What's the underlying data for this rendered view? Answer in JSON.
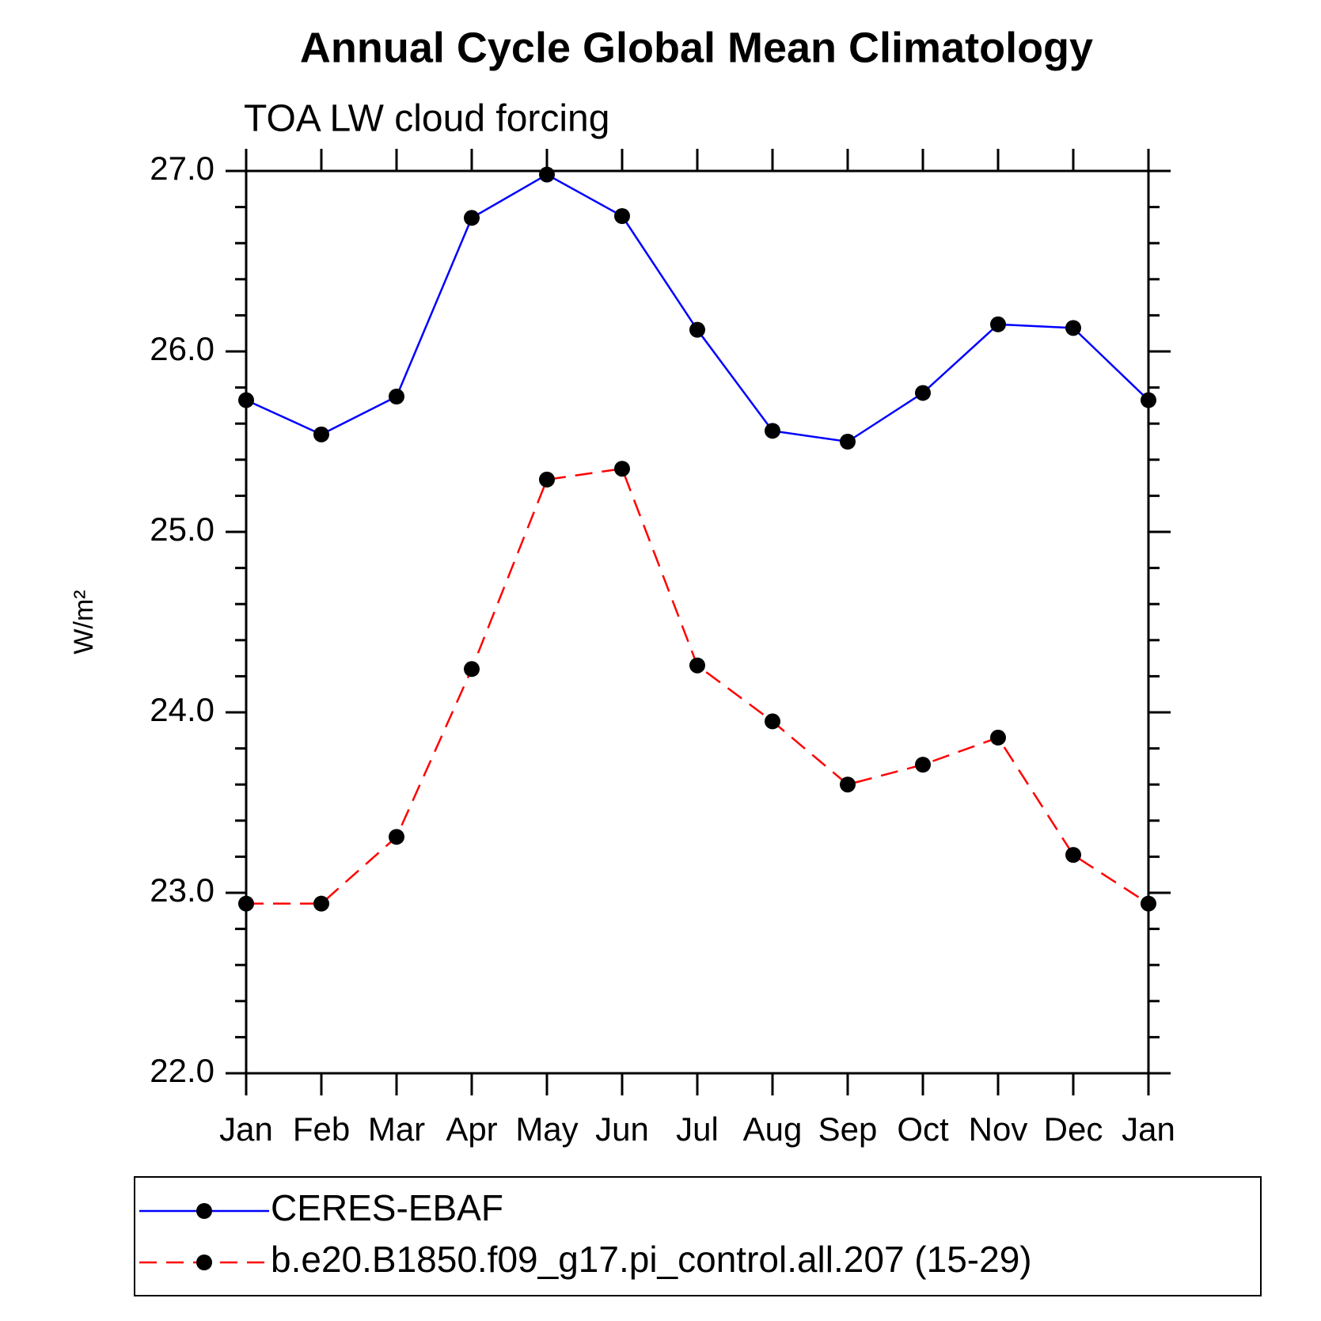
{
  "chart_data": {
    "type": "line",
    "title": "Annual Cycle Global Mean Climatology",
    "subtitle": "TOA LW cloud forcing",
    "y_label": "W/m²",
    "categories": [
      "Jan",
      "Feb",
      "Mar",
      "Apr",
      "May",
      "Jun",
      "Jul",
      "Aug",
      "Sep",
      "Oct",
      "Nov",
      "Dec",
      "Jan"
    ],
    "series": [
      {
        "name": "CERES-EBAF",
        "color": "#0000ff",
        "dash": false,
        "values": [
          25.73,
          25.54,
          25.75,
          26.74,
          26.98,
          26.75,
          26.12,
          25.56,
          25.5,
          25.77,
          26.15,
          26.13,
          25.73
        ]
      },
      {
        "name": "b.e20.B1850.f09_g17.pi_control.all.207 (15-29)",
        "color": "#ff0000",
        "dash": true,
        "values": [
          22.94,
          22.94,
          23.31,
          24.24,
          25.29,
          25.35,
          24.26,
          23.95,
          23.6,
          23.71,
          23.86,
          23.21,
          22.94
        ]
      }
    ],
    "ylim": [
      22,
      27
    ],
    "yticks": [
      {
        "value": 22,
        "label": "22.0"
      },
      {
        "value": 23,
        "label": "23.0"
      },
      {
        "value": 24,
        "label": "24.0"
      },
      {
        "value": 25,
        "label": "25.0"
      },
      {
        "value": 26,
        "label": "26.0"
      },
      {
        "value": 27,
        "label": "27.0"
      }
    ],
    "minor_yticks": [
      22.2,
      22.4,
      22.6,
      22.8,
      23.2,
      23.4,
      23.6,
      23.8,
      24.2,
      24.4,
      24.6,
      24.8,
      25.2,
      25.4,
      25.6,
      25.8,
      26.2,
      26.4,
      26.6,
      26.8
    ],
    "marker_color": "#000000"
  }
}
